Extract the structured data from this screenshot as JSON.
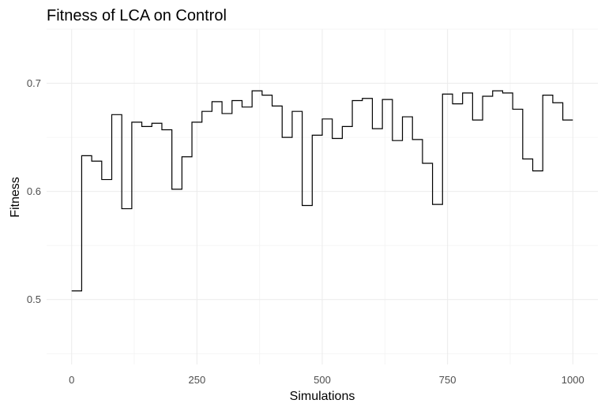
{
  "chart_data": {
    "type": "line",
    "style": "step",
    "title": "Fitness of LCA on Control",
    "xlabel": "Simulations",
    "ylabel": "Fitness",
    "xlim": [
      -50,
      1050
    ],
    "ylim": [
      0.44,
      0.75
    ],
    "xticks": [
      0,
      250,
      500,
      750,
      1000
    ],
    "yticks": [
      0.5,
      0.6,
      0.7
    ],
    "grid": true,
    "legend": "none",
    "line_color": "#000000",
    "series": [
      {
        "x": [
          0,
          20,
          40,
          60,
          80,
          100,
          120,
          140,
          160,
          180,
          200,
          220,
          240,
          260,
          280,
          300,
          320,
          340,
          360,
          380,
          400,
          420,
          440,
          460,
          480,
          500,
          520,
          540,
          560,
          580,
          600,
          620,
          640,
          660,
          680,
          700,
          720,
          740,
          760,
          780,
          800,
          820,
          840,
          860,
          880,
          900,
          920,
          940,
          960,
          980,
          1000
        ],
        "values": [
          0.508,
          0.633,
          0.628,
          0.611,
          0.671,
          0.584,
          0.664,
          0.66,
          0.663,
          0.657,
          0.602,
          0.632,
          0.664,
          0.674,
          0.683,
          0.672,
          0.684,
          0.678,
          0.693,
          0.689,
          0.679,
          0.65,
          0.674,
          0.587,
          0.652,
          0.667,
          0.649,
          0.66,
          0.684,
          0.686,
          0.658,
          0.685,
          0.647,
          0.669,
          0.648,
          0.626,
          0.588,
          0.69,
          0.681,
          0.691,
          0.666,
          0.688,
          0.693,
          0.691,
          0.676,
          0.63,
          0.619,
          0.689,
          0.682,
          0.666,
          0.666
        ]
      }
    ]
  }
}
